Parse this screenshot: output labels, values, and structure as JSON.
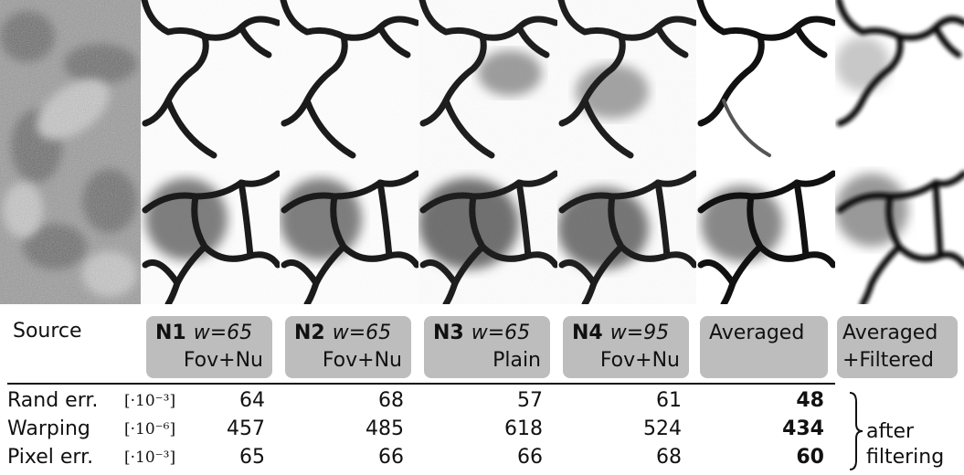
{
  "panels": [
    {
      "label": "Source"
    },
    {
      "id": "N1",
      "w": "w=65",
      "variant": "Fov+Nu"
    },
    {
      "id": "N2",
      "w": "w=65",
      "variant": "Fov+Nu"
    },
    {
      "id": "N3",
      "w": "w=65",
      "variant": "Plain"
    },
    {
      "id": "N4",
      "w": "w=95",
      "variant": "Fov+Nu"
    },
    {
      "label": "Averaged"
    },
    {
      "label": "Averaged",
      "label2": "+Filtered"
    }
  ],
  "table": {
    "rows": [
      {
        "label": "Rand err.",
        "unit": "[·10⁻³]",
        "values": [
          "64",
          "68",
          "57",
          "61",
          "48"
        ]
      },
      {
        "label": "Warping",
        "unit": "[·10⁻⁶]",
        "values": [
          "457",
          "485",
          "618",
          "524",
          "434"
        ]
      },
      {
        "label": "Pixel err.",
        "unit": "[·10⁻³]",
        "values": [
          "65",
          "66",
          "66",
          "68",
          "60"
        ]
      }
    ],
    "best_column_index": 4,
    "note_line1": "after",
    "note_line2": "filtering"
  }
}
